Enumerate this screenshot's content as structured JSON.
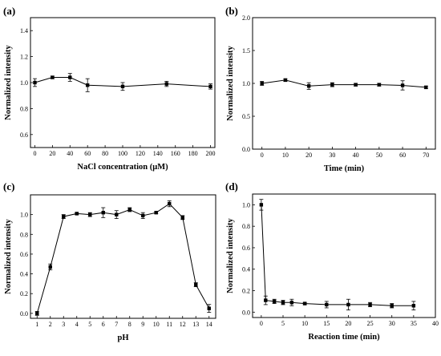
{
  "chart_data": [
    {
      "type": "line",
      "panel_label": "(a)",
      "xlabel": "NaCl concentration (μM)",
      "ylabel": "Normalized intensity",
      "xlim": [
        -5,
        205
      ],
      "ylim": [
        0.5,
        1.5
      ],
      "xticks": [
        0,
        20,
        40,
        60,
        80,
        100,
        120,
        140,
        160,
        180,
        200
      ],
      "yticks": [
        0.6,
        0.8,
        1.0,
        1.2,
        1.4
      ],
      "ytick_labels": [
        "0.6",
        "0.8",
        "1.0",
        "1.2",
        "1.4"
      ],
      "x": [
        0,
        20,
        40,
        60,
        100,
        150,
        200
      ],
      "y": [
        1.0,
        1.04,
        1.04,
        0.98,
        0.97,
        0.99,
        0.97
      ],
      "err": [
        0.03,
        0.01,
        0.03,
        0.05,
        0.03,
        0.02,
        0.02
      ]
    },
    {
      "type": "line",
      "panel_label": "(b)",
      "xlabel": "Time (min)",
      "ylabel": "Normalized intensity",
      "xlim": [
        -4,
        74
      ],
      "ylim": [
        0.0,
        2.0
      ],
      "xticks": [
        0,
        10,
        20,
        30,
        40,
        50,
        60,
        70
      ],
      "yticks": [
        0.0,
        0.5,
        1.0,
        1.5,
        2.0
      ],
      "ytick_labels": [
        "0.0",
        "0.5",
        "1.0",
        "1.5",
        "2.0"
      ],
      "x": [
        0,
        10,
        20,
        30,
        40,
        50,
        60,
        70
      ],
      "y": [
        1.0,
        1.05,
        0.96,
        0.98,
        0.98,
        0.98,
        0.97,
        0.94
      ],
      "err": [
        0.03,
        0.02,
        0.05,
        0.03,
        0.02,
        0.02,
        0.07,
        0.02
      ]
    },
    {
      "type": "line",
      "panel_label": "(c)",
      "xlabel": "pH",
      "ylabel": "Normalized intensity",
      "xlim": [
        0.5,
        14.5
      ],
      "ylim": [
        -0.05,
        1.2
      ],
      "xticks": [
        1,
        2,
        3,
        4,
        5,
        6,
        7,
        8,
        9,
        10,
        11,
        12,
        13,
        14
      ],
      "yticks": [
        0.0,
        0.2,
        0.4,
        0.6,
        0.8,
        1.0
      ],
      "ytick_labels": [
        "0.0",
        "0.2",
        "0.4",
        "0.6",
        "0.8",
        "1.0"
      ],
      "x": [
        1,
        2,
        3,
        4,
        5,
        6,
        7,
        8,
        9,
        10,
        11,
        12,
        13,
        14
      ],
      "y": [
        0.0,
        0.47,
        0.98,
        1.01,
        1.0,
        1.02,
        1.0,
        1.05,
        0.99,
        1.02,
        1.11,
        0.97,
        0.29,
        0.05
      ],
      "err": [
        0.02,
        0.03,
        0.02,
        0.01,
        0.02,
        0.05,
        0.04,
        0.02,
        0.03,
        0.01,
        0.03,
        0.02,
        0.02,
        0.04
      ]
    },
    {
      "type": "line",
      "panel_label": "(d)",
      "xlabel": "Reaction time (min)",
      "ylabel": "Normalized intensity",
      "xlim": [
        -2,
        40
      ],
      "ylim": [
        -0.05,
        1.1
      ],
      "xticks": [
        0,
        5,
        10,
        15,
        20,
        25,
        30,
        35,
        40
      ],
      "yticks": [
        0.0,
        0.2,
        0.4,
        0.6,
        0.8,
        1.0
      ],
      "ytick_labels": [
        "0.0",
        "0.2",
        "0.4",
        "0.6",
        "0.8",
        "1.0"
      ],
      "x": [
        0,
        1,
        3,
        5,
        7,
        10,
        15,
        20,
        25,
        30,
        35
      ],
      "y": [
        1.0,
        0.11,
        0.1,
        0.09,
        0.09,
        0.08,
        0.07,
        0.07,
        0.07,
        0.06,
        0.06
      ],
      "err": [
        0.05,
        0.04,
        0.02,
        0.02,
        0.03,
        0.01,
        0.03,
        0.05,
        0.02,
        0.02,
        0.04
      ]
    }
  ]
}
